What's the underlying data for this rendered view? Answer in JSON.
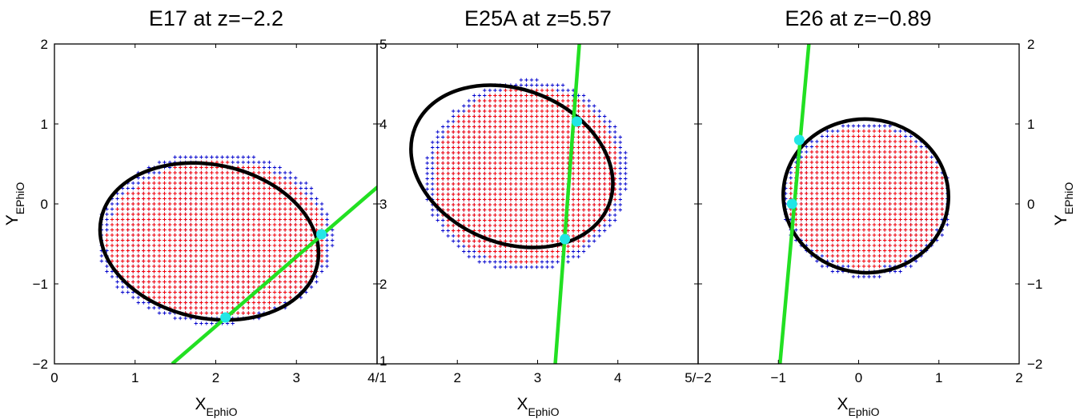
{
  "chart_data": [
    {
      "type": "scatter",
      "title": "E17 at z=−2.2",
      "xlabel": "X",
      "xlabel_sub": "EphiO",
      "ylabel": "Y",
      "ylabel_sub": "EPhiO",
      "xlim": [
        0,
        4
      ],
      "ylim": [
        -2,
        2
      ],
      "xticks": [
        0,
        1,
        2,
        3,
        4
      ],
      "yticks": [
        -2,
        -1,
        0,
        1,
        2
      ],
      "xtick_labels": [
        "0",
        "1",
        "2",
        "3",
        "4/1"
      ],
      "ytick_labels": [
        "−2",
        "−1",
        "0",
        "1",
        "2"
      ],
      "yaxis_side": "left",
      "grid_spacing": 0.065,
      "blue_region": {
        "cx": 1.99,
        "cy": -0.43,
        "rx": 1.47,
        "ry": 1.08,
        "rot_deg": 0
      },
      "red_region": {
        "cx": 2.01,
        "cy": -0.45,
        "rx": 1.37,
        "ry": 0.98,
        "rot_deg": 0
      },
      "ellipse": {
        "cx": 1.92,
        "cy": -0.47,
        "rx": 1.37,
        "ry": 0.96,
        "rot_deg": -12
      },
      "line": {
        "points": [
          [
            1.46,
            -2.0
          ],
          [
            4.05,
            0.25
          ]
        ]
      },
      "markers": [
        {
          "x": 3.31,
          "y": -0.38
        },
        {
          "x": 2.12,
          "y": -1.42
        }
      ]
    },
    {
      "type": "scatter",
      "title": "E25A at z=5.57",
      "xlabel": "X",
      "xlabel_sub": "EphiO",
      "xlim": [
        1,
        5
      ],
      "ylim": [
        1,
        5
      ],
      "xticks": [
        2,
        3,
        4
      ],
      "yticks": [
        1,
        2,
        3,
        4,
        5
      ],
      "xtick_labels": [
        "2",
        "3",
        "4"
      ],
      "ytick_labels": [
        "1",
        "2",
        "3",
        "4",
        "5"
      ],
      "yaxis_side": "inside-left",
      "right_edge_label": "5/−2",
      "grid_spacing": 0.065,
      "blue_region": {
        "cx": 2.86,
        "cy": 3.35,
        "rx": 1.27,
        "ry": 1.2,
        "rot_deg": -15
      },
      "red_region": {
        "cx": 2.86,
        "cy": 3.36,
        "rx": 1.17,
        "ry": 1.1,
        "rot_deg": -15
      },
      "ellipse": {
        "cx": 2.68,
        "cy": 3.47,
        "rx": 1.3,
        "ry": 0.96,
        "rot_deg": -22
      },
      "line": {
        "points": [
          [
            3.22,
            1.0
          ],
          [
            3.52,
            5.0
          ]
        ]
      },
      "markers": [
        {
          "x": 3.49,
          "y": 4.03
        },
        {
          "x": 3.34,
          "y": 2.56
        }
      ]
    },
    {
      "type": "scatter",
      "title": "E26 at z=−0.89",
      "xlabel": "X",
      "xlabel_sub": "EphiO",
      "ylabel": "Y",
      "ylabel_sub": "EPhiO",
      "xlim": [
        -2,
        2
      ],
      "ylim": [
        -2,
        2
      ],
      "xticks": [
        -1,
        0,
        1,
        2
      ],
      "yticks": [
        -2,
        -1,
        0,
        1,
        2
      ],
      "xtick_labels": [
        "−1",
        "0",
        "1",
        "2"
      ],
      "ytick_labels": [
        "−2",
        "−1",
        "0",
        "1",
        "2"
      ],
      "yaxis_side": "right",
      "grid_spacing": 0.065,
      "blue_region": {
        "cx": 0.1,
        "cy": 0.05,
        "rx": 1.06,
        "ry": 0.98,
        "rot_deg": 0
      },
      "red_region": {
        "cx": 0.1,
        "cy": 0.08,
        "rx": 0.98,
        "ry": 0.88,
        "rot_deg": 0
      },
      "ellipse": {
        "cx": 0.09,
        "cy": 0.1,
        "rx": 1.03,
        "ry": 0.96,
        "rot_deg": -5
      },
      "line": {
        "points": [
          [
            -0.98,
            -2.0
          ],
          [
            -0.62,
            2.0
          ]
        ]
      },
      "markers": [
        {
          "x": -0.74,
          "y": 0.8
        },
        {
          "x": -0.83,
          "y": 0.0
        }
      ]
    }
  ],
  "colors": {
    "red_points": "#ff0000",
    "blue_points": "#0000cc",
    "ellipse": "#000000",
    "line": "#22e022",
    "markers": "#22e6e6"
  }
}
